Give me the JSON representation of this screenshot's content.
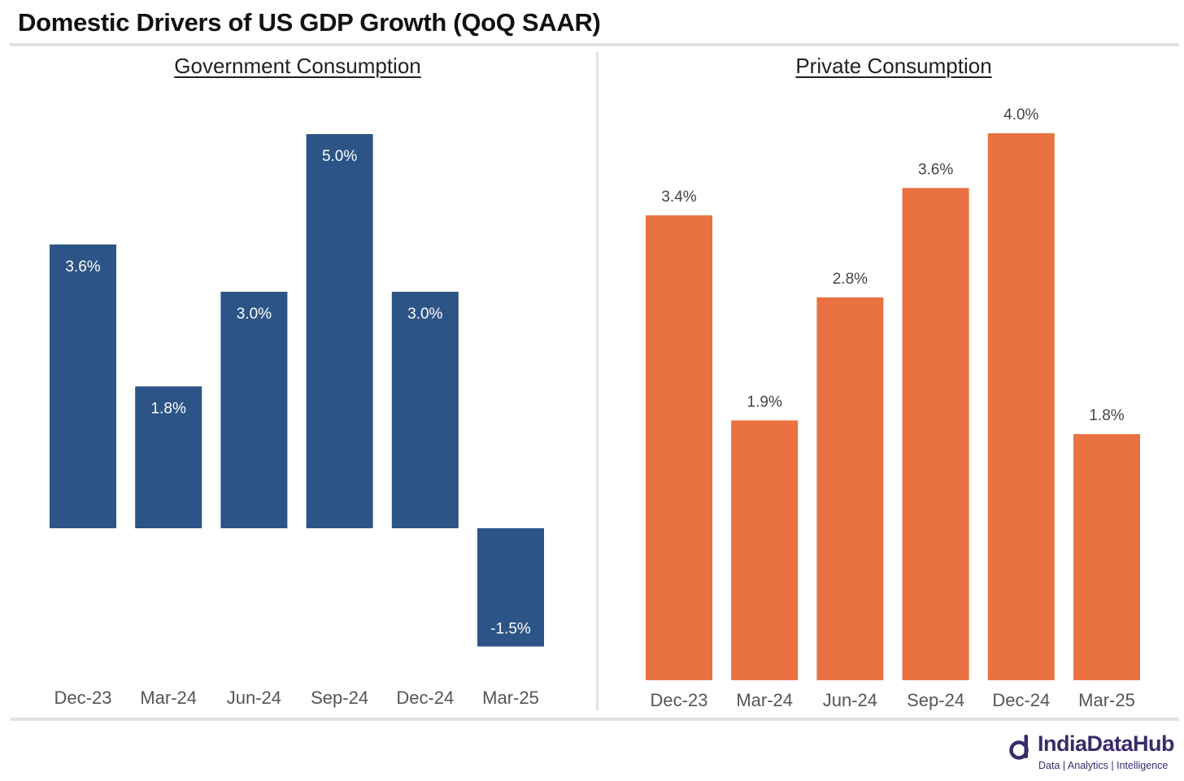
{
  "title": "Domestic Drivers of US GDP Growth (QoQ SAAR)",
  "colors": {
    "government": "#2d5486",
    "private": "#e97142",
    "axis_text": "#555555"
  },
  "chart_data": [
    {
      "type": "bar",
      "title": "Government Consumption",
      "categories": [
        "Dec-23",
        "Mar-24",
        "Jun-24",
        "Sep-24",
        "Dec-24",
        "Mar-25"
      ],
      "values": [
        3.6,
        1.8,
        3.0,
        5.0,
        3.0,
        -1.5
      ],
      "labels": [
        "3.6%",
        "1.8%",
        "3.0%",
        "5.0%",
        "3.0%",
        "-1.5%"
      ],
      "ylim": [
        -2.0,
        5.0
      ],
      "grid": false,
      "label_position": "inside"
    },
    {
      "type": "bar",
      "title": "Private Consumption",
      "categories": [
        "Dec-23",
        "Mar-24",
        "Jun-24",
        "Sep-24",
        "Dec-24",
        "Mar-25"
      ],
      "values": [
        3.4,
        1.9,
        2.8,
        3.6,
        4.0,
        1.8
      ],
      "labels": [
        "3.4%",
        "1.9%",
        "2.8%",
        "3.6%",
        "4.0%",
        "1.8%"
      ],
      "ylim": [
        0,
        4.0
      ],
      "grid": false,
      "label_position": "outside"
    }
  ],
  "logo": {
    "name": "IndiaDataHub",
    "tagline": "Data | Analytics | Intelligence",
    "icon": "idh-logo-icon"
  }
}
